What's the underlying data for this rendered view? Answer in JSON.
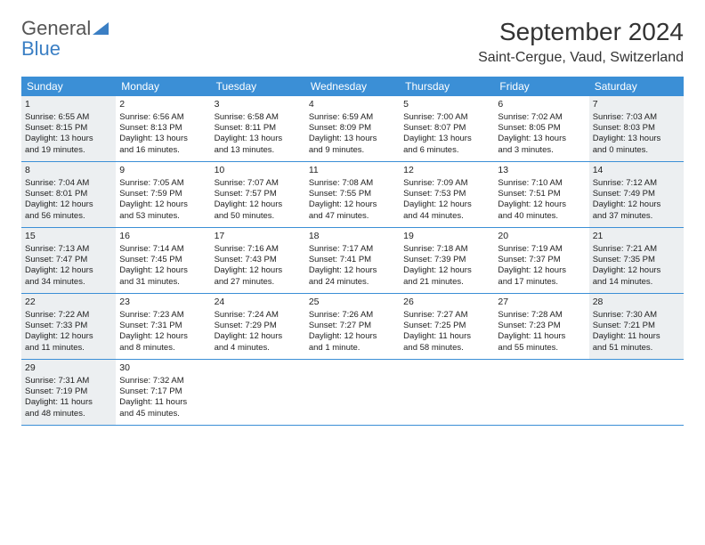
{
  "logo": {
    "line1": "General",
    "line2": "Blue"
  },
  "header": {
    "month_title": "September 2024",
    "location": "Saint-Cergue, Vaud, Switzerland"
  },
  "weekdays": [
    "Sunday",
    "Monday",
    "Tuesday",
    "Wednesday",
    "Thursday",
    "Friday",
    "Saturday"
  ],
  "colors": {
    "header_bg": "#3b8fd6",
    "week_border": "#3b8fd6",
    "shaded_bg": "#eceff1",
    "logo_blue": "#3b7fc4"
  },
  "weeks": [
    [
      {
        "num": "1",
        "shaded": true,
        "sunrise": "Sunrise: 6:55 AM",
        "sunset": "Sunset: 8:15 PM",
        "dl1": "Daylight: 13 hours",
        "dl2": "and 19 minutes."
      },
      {
        "num": "2",
        "shaded": false,
        "sunrise": "Sunrise: 6:56 AM",
        "sunset": "Sunset: 8:13 PM",
        "dl1": "Daylight: 13 hours",
        "dl2": "and 16 minutes."
      },
      {
        "num": "3",
        "shaded": false,
        "sunrise": "Sunrise: 6:58 AM",
        "sunset": "Sunset: 8:11 PM",
        "dl1": "Daylight: 13 hours",
        "dl2": "and 13 minutes."
      },
      {
        "num": "4",
        "shaded": false,
        "sunrise": "Sunrise: 6:59 AM",
        "sunset": "Sunset: 8:09 PM",
        "dl1": "Daylight: 13 hours",
        "dl2": "and 9 minutes."
      },
      {
        "num": "5",
        "shaded": false,
        "sunrise": "Sunrise: 7:00 AM",
        "sunset": "Sunset: 8:07 PM",
        "dl1": "Daylight: 13 hours",
        "dl2": "and 6 minutes."
      },
      {
        "num": "6",
        "shaded": false,
        "sunrise": "Sunrise: 7:02 AM",
        "sunset": "Sunset: 8:05 PM",
        "dl1": "Daylight: 13 hours",
        "dl2": "and 3 minutes."
      },
      {
        "num": "7",
        "shaded": true,
        "sunrise": "Sunrise: 7:03 AM",
        "sunset": "Sunset: 8:03 PM",
        "dl1": "Daylight: 13 hours",
        "dl2": "and 0 minutes."
      }
    ],
    [
      {
        "num": "8",
        "shaded": true,
        "sunrise": "Sunrise: 7:04 AM",
        "sunset": "Sunset: 8:01 PM",
        "dl1": "Daylight: 12 hours",
        "dl2": "and 56 minutes."
      },
      {
        "num": "9",
        "shaded": false,
        "sunrise": "Sunrise: 7:05 AM",
        "sunset": "Sunset: 7:59 PM",
        "dl1": "Daylight: 12 hours",
        "dl2": "and 53 minutes."
      },
      {
        "num": "10",
        "shaded": false,
        "sunrise": "Sunrise: 7:07 AM",
        "sunset": "Sunset: 7:57 PM",
        "dl1": "Daylight: 12 hours",
        "dl2": "and 50 minutes."
      },
      {
        "num": "11",
        "shaded": false,
        "sunrise": "Sunrise: 7:08 AM",
        "sunset": "Sunset: 7:55 PM",
        "dl1": "Daylight: 12 hours",
        "dl2": "and 47 minutes."
      },
      {
        "num": "12",
        "shaded": false,
        "sunrise": "Sunrise: 7:09 AM",
        "sunset": "Sunset: 7:53 PM",
        "dl1": "Daylight: 12 hours",
        "dl2": "and 44 minutes."
      },
      {
        "num": "13",
        "shaded": false,
        "sunrise": "Sunrise: 7:10 AM",
        "sunset": "Sunset: 7:51 PM",
        "dl1": "Daylight: 12 hours",
        "dl2": "and 40 minutes."
      },
      {
        "num": "14",
        "shaded": true,
        "sunrise": "Sunrise: 7:12 AM",
        "sunset": "Sunset: 7:49 PM",
        "dl1": "Daylight: 12 hours",
        "dl2": "and 37 minutes."
      }
    ],
    [
      {
        "num": "15",
        "shaded": true,
        "sunrise": "Sunrise: 7:13 AM",
        "sunset": "Sunset: 7:47 PM",
        "dl1": "Daylight: 12 hours",
        "dl2": "and 34 minutes."
      },
      {
        "num": "16",
        "shaded": false,
        "sunrise": "Sunrise: 7:14 AM",
        "sunset": "Sunset: 7:45 PM",
        "dl1": "Daylight: 12 hours",
        "dl2": "and 31 minutes."
      },
      {
        "num": "17",
        "shaded": false,
        "sunrise": "Sunrise: 7:16 AM",
        "sunset": "Sunset: 7:43 PM",
        "dl1": "Daylight: 12 hours",
        "dl2": "and 27 minutes."
      },
      {
        "num": "18",
        "shaded": false,
        "sunrise": "Sunrise: 7:17 AM",
        "sunset": "Sunset: 7:41 PM",
        "dl1": "Daylight: 12 hours",
        "dl2": "and 24 minutes."
      },
      {
        "num": "19",
        "shaded": false,
        "sunrise": "Sunrise: 7:18 AM",
        "sunset": "Sunset: 7:39 PM",
        "dl1": "Daylight: 12 hours",
        "dl2": "and 21 minutes."
      },
      {
        "num": "20",
        "shaded": false,
        "sunrise": "Sunrise: 7:19 AM",
        "sunset": "Sunset: 7:37 PM",
        "dl1": "Daylight: 12 hours",
        "dl2": "and 17 minutes."
      },
      {
        "num": "21",
        "shaded": true,
        "sunrise": "Sunrise: 7:21 AM",
        "sunset": "Sunset: 7:35 PM",
        "dl1": "Daylight: 12 hours",
        "dl2": "and 14 minutes."
      }
    ],
    [
      {
        "num": "22",
        "shaded": true,
        "sunrise": "Sunrise: 7:22 AM",
        "sunset": "Sunset: 7:33 PM",
        "dl1": "Daylight: 12 hours",
        "dl2": "and 11 minutes."
      },
      {
        "num": "23",
        "shaded": false,
        "sunrise": "Sunrise: 7:23 AM",
        "sunset": "Sunset: 7:31 PM",
        "dl1": "Daylight: 12 hours",
        "dl2": "and 8 minutes."
      },
      {
        "num": "24",
        "shaded": false,
        "sunrise": "Sunrise: 7:24 AM",
        "sunset": "Sunset: 7:29 PM",
        "dl1": "Daylight: 12 hours",
        "dl2": "and 4 minutes."
      },
      {
        "num": "25",
        "shaded": false,
        "sunrise": "Sunrise: 7:26 AM",
        "sunset": "Sunset: 7:27 PM",
        "dl1": "Daylight: 12 hours",
        "dl2": "and 1 minute."
      },
      {
        "num": "26",
        "shaded": false,
        "sunrise": "Sunrise: 7:27 AM",
        "sunset": "Sunset: 7:25 PM",
        "dl1": "Daylight: 11 hours",
        "dl2": "and 58 minutes."
      },
      {
        "num": "27",
        "shaded": false,
        "sunrise": "Sunrise: 7:28 AM",
        "sunset": "Sunset: 7:23 PM",
        "dl1": "Daylight: 11 hours",
        "dl2": "and 55 minutes."
      },
      {
        "num": "28",
        "shaded": true,
        "sunrise": "Sunrise: 7:30 AM",
        "sunset": "Sunset: 7:21 PM",
        "dl1": "Daylight: 11 hours",
        "dl2": "and 51 minutes."
      }
    ],
    [
      {
        "num": "29",
        "shaded": true,
        "sunrise": "Sunrise: 7:31 AM",
        "sunset": "Sunset: 7:19 PM",
        "dl1": "Daylight: 11 hours",
        "dl2": "and 48 minutes."
      },
      {
        "num": "30",
        "shaded": false,
        "sunrise": "Sunrise: 7:32 AM",
        "sunset": "Sunset: 7:17 PM",
        "dl1": "Daylight: 11 hours",
        "dl2": "and 45 minutes."
      },
      {
        "empty": true
      },
      {
        "empty": true
      },
      {
        "empty": true
      },
      {
        "empty": true
      },
      {
        "empty": true
      }
    ]
  ]
}
